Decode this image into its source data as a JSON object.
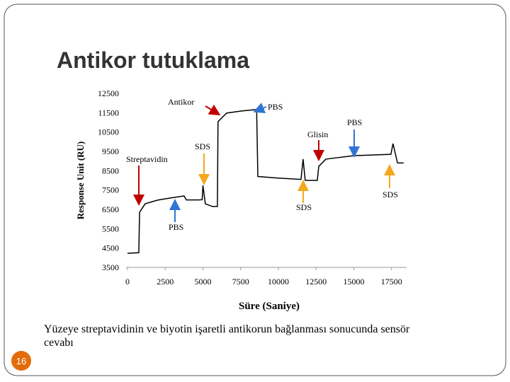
{
  "slide": {
    "title": "Antikor tutuklama",
    "caption_lines": [
      "Yüzeye streptavidinin ve biyotin işaretli antikorun bağlanması sonucunda sensör",
      "cevabı"
    ],
    "page_number": "16"
  },
  "chart_data": {
    "type": "line",
    "x_label": "Süre (Saniye)",
    "y_label": "Response Unit (RU)",
    "x": [
      0,
      750,
      800,
      1170,
      2000,
      2800,
      3750,
      3900,
      4700,
      4950,
      5000,
      5160,
      5630,
      5960,
      6000,
      6570,
      7510,
      8450,
      8560,
      8640,
      10000,
      11500,
      11640,
      11780,
      12580,
      12680,
      13150,
      15020,
      17460,
      17600,
      17900,
      18300
    ],
    "series": [
      {
        "color": "#000000",
        "values": [
          4230,
          4260,
          6350,
          6790,
          6980,
          7085,
          7195,
          6990,
          6990,
          7000,
          7740,
          6790,
          6650,
          6650,
          11040,
          11480,
          11585,
          11660,
          11660,
          8200,
          8120,
          8050,
          9100,
          8000,
          8000,
          8730,
          9100,
          9280,
          9350,
          9900,
          8900,
          8900
        ]
      }
    ],
    "xlim": [
      0,
      18500
    ],
    "ylim": [
      3500,
      12500
    ],
    "xticks": [
      0,
      2500,
      5000,
      7500,
      10000,
      12500,
      15000,
      17500
    ],
    "yticks": [
      3500,
      4500,
      5500,
      6500,
      7500,
      8500,
      9500,
      10500,
      11500,
      12500
    ],
    "annotations": [
      "Antikor",
      "PBS",
      "PBS",
      "Glisin",
      "SDS",
      "Streptavidin",
      "SDS",
      "SDS",
      "PBS"
    ]
  }
}
